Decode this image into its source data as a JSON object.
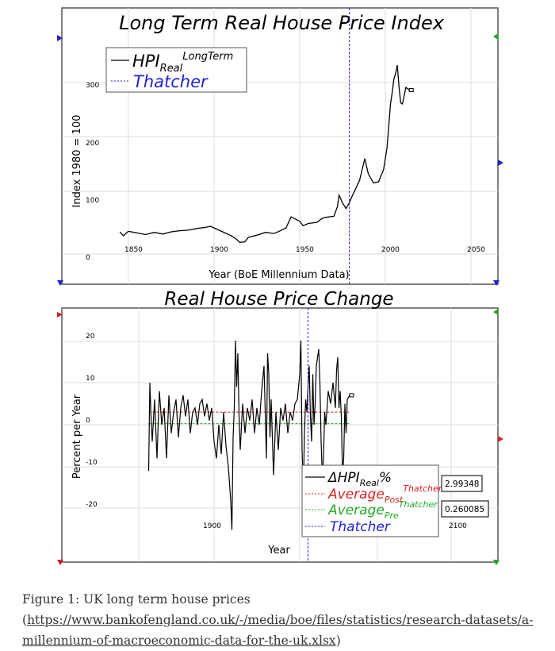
{
  "charts": [
    {
      "title": "Long Term Real House Price Index",
      "xlabel": "Year (BoE Millennium Data)",
      "ylabel": "Index 1980 = 100",
      "legend": [
        {
          "main": "HPI",
          "sub": "Real",
          "sup": "LongTerm",
          "color": "#000000"
        },
        {
          "main": "Thatcher",
          "sub": "",
          "sup": "",
          "color": "#2222dd"
        }
      ],
      "x_ticks": [
        "1850",
        "1900",
        "1950",
        "2000",
        "2050"
      ],
      "y_ticks": [
        "0",
        "100",
        "200",
        "300"
      ]
    },
    {
      "title": "Real House Price Change",
      "xlabel": "Year",
      "ylabel": "Percent per Year",
      "legend": [
        {
          "main": "ΔHPI",
          "sub": "Real",
          "sup": "",
          "suffix": "%",
          "color": "#000000"
        },
        {
          "main": "Average",
          "sub": "Post",
          "sup": "Thatcher",
          "suffix": "",
          "color": "#dd2222"
        },
        {
          "main": "Average",
          "sub": "Pre",
          "sup": "Thatcher",
          "suffix": "",
          "color": "#22aa22"
        },
        {
          "main": "Thatcher",
          "sub": "",
          "sup": "",
          "suffix": "",
          "color": "#2222dd"
        }
      ],
      "values_boxes": [
        "2.99348",
        "0.260085"
      ],
      "x_ticks": [
        "1900",
        "2100"
      ],
      "y_ticks": [
        "20",
        "10",
        "0",
        "-10",
        "-20"
      ]
    }
  ],
  "caption": {
    "text": "Figure 1: UK long term house prices (",
    "link": "https://www.bankofengland.co.uk/-/media/boe/files/statistics/research-datasets/a-millennium-of-macroeconomic-data-for-the-uk.xlsx",
    "suffix": ")"
  },
  "chart_data": [
    {
      "type": "line",
      "title": "Long Term Real House Price Index",
      "xlabel": "Year (BoE Millennium Data)",
      "ylabel": "Index 1980 = 100",
      "xlim": [
        1830,
        2065
      ],
      "ylim": [
        -10,
        350
      ],
      "series": [
        {
          "name": "HPI Real LongTerm",
          "x": [
            1845,
            1847,
            1850,
            1855,
            1860,
            1865,
            1870,
            1875,
            1880,
            1885,
            1890,
            1895,
            1898,
            1900,
            1905,
            1910,
            1913,
            1915,
            1918,
            1920,
            1925,
            1930,
            1935,
            1938,
            1942,
            1945,
            1950,
            1952,
            1955,
            1960,
            1963,
            1965,
            1970,
            1972,
            1973,
            1975,
            1977,
            1979,
            1980,
            1985,
            1988,
            1990,
            1993,
            1996,
            1999,
            2001,
            2003,
            2004,
            2005,
            2006,
            2007,
            2008,
            2009,
            2010,
            2012,
            2014
          ],
          "y": [
            40,
            33,
            41,
            38,
            35,
            39,
            36,
            40,
            42,
            43,
            46,
            48,
            50,
            47,
            40,
            33,
            27,
            21,
            22,
            30,
            34,
            39,
            37,
            41,
            47,
            67,
            59,
            51,
            55,
            57,
            64,
            66,
            68,
            85,
            106,
            92,
            82,
            92,
            100,
            133,
            172,
            145,
            128,
            130,
            152,
            192,
            270,
            290,
            315,
            325,
            340,
            300,
            272,
            270,
            300,
            295
          ]
        },
        {
          "name": "Thatcher",
          "x": [
            1979,
            1979
          ],
          "y": [
            -10,
            350
          ]
        }
      ]
    },
    {
      "type": "line",
      "title": "Real House Price Change",
      "xlabel": "Year",
      "ylabel": "Percent per Year",
      "xlim": [
        1815,
        2125
      ],
      "ylim": [
        -30,
        25
      ],
      "series": [
        {
          "name": "ΔHPI Real %",
          "x": [
            1845,
            1846,
            1847,
            1848,
            1850,
            1852,
            1854,
            1856,
            1858,
            1860,
            1862,
            1864,
            1866,
            1868,
            1870,
            1872,
            1874,
            1876,
            1878,
            1880,
            1882,
            1884,
            1886,
            1888,
            1890,
            1892,
            1894,
            1896,
            1898,
            1900,
            1902,
            1904,
            1906,
            1908,
            1910,
            1912,
            1914,
            1915,
            1916,
            1917,
            1918,
            1919,
            1920,
            1921,
            1922,
            1924,
            1926,
            1928,
            1930,
            1932,
            1934,
            1936,
            1938,
            1940,
            1942,
            1944,
            1945,
            1946,
            1947,
            1948,
            1950,
            1952,
            1954,
            1956,
            1958,
            1960,
            1962,
            1964,
            1966,
            1968,
            1970,
            1972,
            1973,
            1974,
            1975,
            1976,
            1977,
            1978,
            1979,
            1980,
            1981,
            1982,
            1983,
            1984,
            1985,
            1986,
            1987,
            1988,
            1989,
            1990,
            1991,
            1992,
            1993,
            1994,
            1996,
            1998,
            2000,
            2002,
            2003,
            2004,
            2005,
            2006,
            2007,
            2008,
            2009,
            2010,
            2011,
            2012,
            2014
          ],
          "y": [
            -11,
            10,
            2,
            -4,
            6,
            -8,
            8,
            0,
            4,
            -8,
            7,
            -2,
            3,
            6,
            -3,
            4,
            7,
            2,
            6,
            -2,
            3,
            4,
            0,
            5,
            6,
            2,
            5,
            1,
            4,
            -4,
            -8,
            0,
            -7,
            3,
            -5,
            -10,
            -18,
            -25,
            -3,
            4,
            20,
            9,
            17,
            2,
            -6,
            5,
            -2,
            4,
            1,
            6,
            -2,
            4,
            0,
            8,
            14,
            -8,
            17,
            12,
            -3,
            6,
            -12,
            3,
            -6,
            4,
            1,
            5,
            -2,
            3,
            1,
            5,
            6,
            12,
            20,
            -6,
            -16,
            -2,
            6,
            3,
            9,
            14,
            2,
            -4,
            12,
            0,
            5,
            14,
            16,
            18,
            10,
            -4,
            -12,
            -8,
            3,
            0,
            8,
            5,
            10,
            4,
            13,
            16,
            4,
            8,
            2,
            -12,
            -8,
            5,
            -2,
            6,
            7
          ]
        },
        {
          "name": "Average Post Thatcher",
          "value": 2.99348
        },
        {
          "name": "Average Pre Thatcher",
          "value": 0.260085
        },
        {
          "name": "Thatcher",
          "x": [
            1979,
            1979
          ]
        }
      ]
    }
  ]
}
